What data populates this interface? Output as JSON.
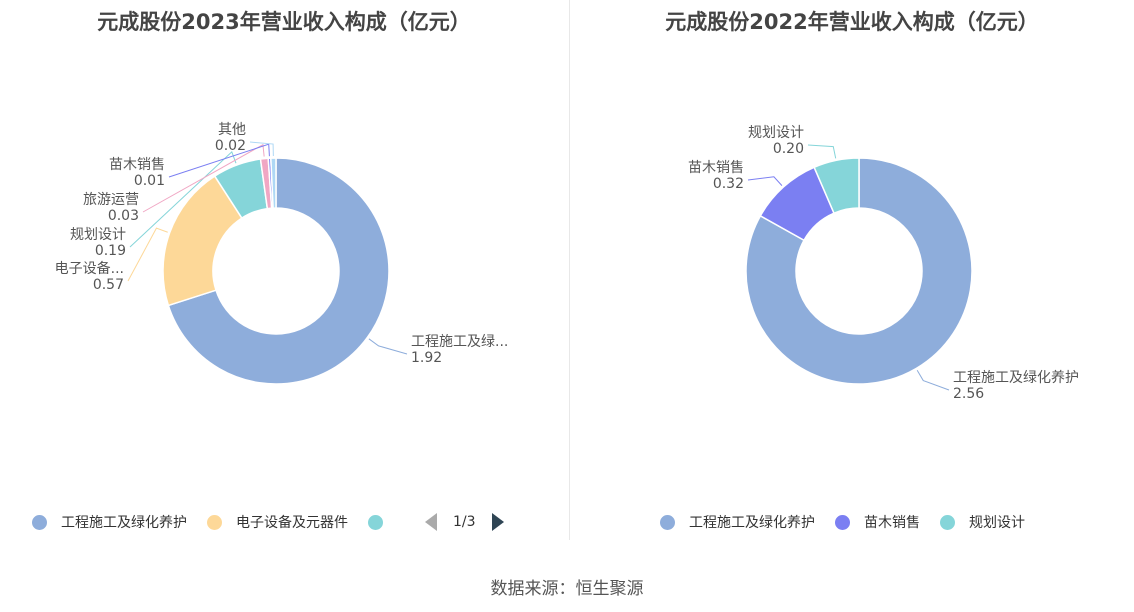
{
  "chart_data": [
    {
      "type": "pie",
      "title": "元成股份2023年营业收入构成（亿元）",
      "slices": [
        {
          "name": "工程施工及绿化养护",
          "label_name": "工程施工及绿...",
          "value": 1.92,
          "value_text": "1.92",
          "color": "#8eaddb"
        },
        {
          "name": "电子设备及元器件",
          "label_name": "电子设备...",
          "value": 0.57,
          "value_text": "0.57",
          "color": "#fdd898"
        },
        {
          "name": "规划设计",
          "label_name": "规划设计",
          "value": 0.19,
          "value_text": "0.19",
          "color": "#85d5d9"
        },
        {
          "name": "旅游运营",
          "label_name": "旅游运营",
          "value": 0.03,
          "value_text": "0.03",
          "color": "#f0a7c4"
        },
        {
          "name": "苗木销售",
          "label_name": "苗木销售",
          "value": 0.01,
          "value_text": "0.01",
          "color": "#7b7ff2"
        },
        {
          "name": "其他",
          "label_name": "其他",
          "value": 0.02,
          "value_text": "0.02",
          "color": "#aed8f5"
        }
      ],
      "legend": {
        "items": [
          "工程施工及绿化养护",
          "电子设备及元器件",
          ""
        ],
        "page": "1/3"
      }
    },
    {
      "type": "pie",
      "title": "元成股份2022年营业收入构成（亿元）",
      "slices": [
        {
          "name": "工程施工及绿化养护",
          "label_name": "工程施工及绿化养护",
          "value": 2.56,
          "value_text": "2.56",
          "color": "#8eaddb"
        },
        {
          "name": "苗木销售",
          "label_name": "苗木销售",
          "value": 0.32,
          "value_text": "0.32",
          "color": "#7b7ff2"
        },
        {
          "name": "规划设计",
          "label_name": "规划设计",
          "value": 0.2,
          "value_text": "0.20",
          "color": "#85d5d9"
        }
      ],
      "legend": {
        "items": [
          "工程施工及绿化养护",
          "苗木销售",
          "规划设计"
        ]
      }
    }
  ],
  "source": "数据来源：恒生聚源"
}
